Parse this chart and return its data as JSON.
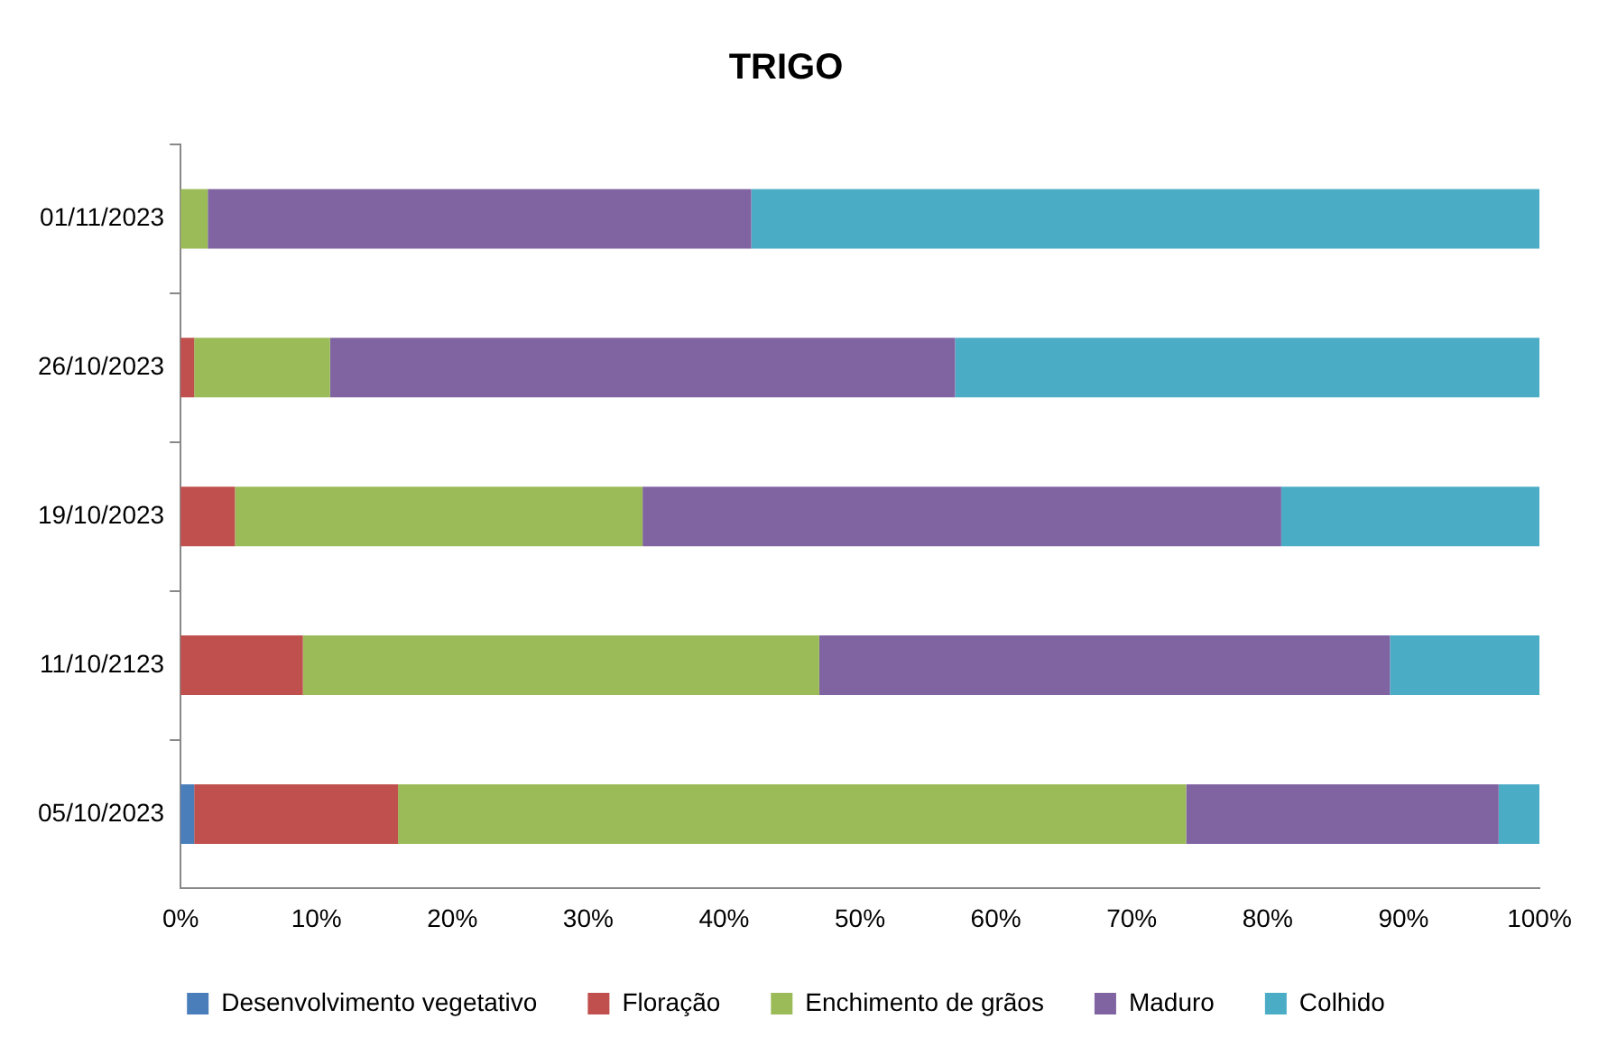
{
  "chart_data": {
    "type": "bar",
    "title": "TRIGO",
    "orientation": "horizontal",
    "stacked": true,
    "categories": [
      "01/11/2023",
      "26/10/2023",
      "19/10/2023",
      "11/10/2123",
      "05/10/2023"
    ],
    "series": [
      {
        "name": "Desenvolvimento vegetativo",
        "color": "#4a7ebb",
        "values": [
          0,
          0,
          0,
          0,
          1
        ]
      },
      {
        "name": "Floração",
        "color": "#c0504d",
        "values": [
          0,
          1,
          4,
          9,
          15
        ]
      },
      {
        "name": "Enchimento de grãos",
        "color": "#9bbb59",
        "values": [
          2,
          10,
          30,
          38,
          58
        ]
      },
      {
        "name": "Maduro",
        "color": "#8064a2",
        "values": [
          40,
          46,
          47,
          42,
          23
        ]
      },
      {
        "name": "Colhido",
        "color": "#4bacc6",
        "values": [
          58,
          43,
          19,
          11,
          3
        ]
      }
    ],
    "xlim": [
      0,
      100
    ],
    "xticks": [
      {
        "value": 0,
        "label": "0%"
      },
      {
        "value": 10,
        "label": "10%"
      },
      {
        "value": 20,
        "label": "20%"
      },
      {
        "value": 30,
        "label": "30%"
      },
      {
        "value": 40,
        "label": "40%"
      },
      {
        "value": 50,
        "label": "50%"
      },
      {
        "value": 60,
        "label": "60%"
      },
      {
        "value": 70,
        "label": "70%"
      },
      {
        "value": 80,
        "label": "80%"
      },
      {
        "value": 90,
        "label": "90%"
      },
      {
        "value": 100,
        "label": "100%"
      }
    ],
    "grid": false,
    "legend": "bottom"
  }
}
